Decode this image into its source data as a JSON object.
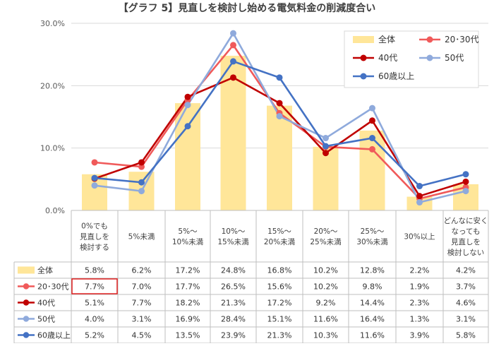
{
  "chart_data": {
    "type": "bar",
    "title": "【グラフ 5】見直しを検討し始める電気料金の削減度合い",
    "categories": [
      [
        "0%でも",
        "見直しを",
        "検討する"
      ],
      [
        "5%未満"
      ],
      [
        "5%～",
        "10%未満"
      ],
      [
        "10%～",
        "15%未満"
      ],
      [
        "15%～",
        "20%未満"
      ],
      [
        "20%～",
        "25%未満"
      ],
      [
        "25%～",
        "30%未満"
      ],
      [
        "30%以上"
      ],
      [
        "どんなに安く",
        "なっても",
        "見直しを",
        "検討しない"
      ]
    ],
    "y_ticks": [
      "0.0%",
      "10.0%",
      "20.0%",
      "30.0%"
    ],
    "ylim": [
      0,
      30
    ],
    "grid": true,
    "legend_position": "top-right",
    "series": [
      {
        "name": "全体",
        "kind": "bar",
        "color": "#FFE699",
        "values": [
          5.8,
          6.2,
          17.2,
          24.8,
          16.8,
          10.2,
          12.8,
          2.2,
          4.2
        ],
        "labels": [
          "5.8%",
          "6.2%",
          "17.2%",
          "24.8%",
          "16.8%",
          "10.2%",
          "12.8%",
          "2.2%",
          "4.2%"
        ]
      },
      {
        "name": "20･30代",
        "kind": "line",
        "color": "#F05A5A",
        "values": [
          7.7,
          7.0,
          17.7,
          26.5,
          15.6,
          10.2,
          9.8,
          1.9,
          3.7
        ],
        "labels": [
          "7.7%",
          "7.0%",
          "17.7%",
          "26.5%",
          "15.6%",
          "10.2%",
          "9.8%",
          "1.9%",
          "3.7%"
        ]
      },
      {
        "name": "40代",
        "kind": "line",
        "color": "#C00000",
        "values": [
          5.1,
          7.7,
          18.2,
          21.3,
          17.2,
          9.2,
          14.4,
          2.3,
          4.6
        ],
        "labels": [
          "5.1%",
          "7.7%",
          "18.2%",
          "21.3%",
          "17.2%",
          "9.2%",
          "14.4%",
          "2.3%",
          "4.6%"
        ]
      },
      {
        "name": "50代",
        "kind": "line",
        "color": "#8FAADC",
        "values": [
          4.0,
          3.1,
          16.9,
          28.4,
          15.1,
          11.6,
          16.4,
          1.3,
          3.1
        ],
        "labels": [
          "4.0%",
          "3.1%",
          "16.9%",
          "28.4%",
          "15.1%",
          "11.6%",
          "16.4%",
          "1.3%",
          "3.1%"
        ]
      },
      {
        "name": "60歳以上",
        "kind": "line",
        "color": "#4472C4",
        "values": [
          5.2,
          4.5,
          13.5,
          23.9,
          21.3,
          10.3,
          11.6,
          3.9,
          5.8
        ],
        "labels": [
          "5.2%",
          "4.5%",
          "13.5%",
          "23.9%",
          "21.3%",
          "10.3%",
          "11.6%",
          "3.9%",
          "5.8%"
        ]
      }
    ],
    "highlight": {
      "series": 1,
      "category": 0,
      "color": "#E02020"
    }
  }
}
